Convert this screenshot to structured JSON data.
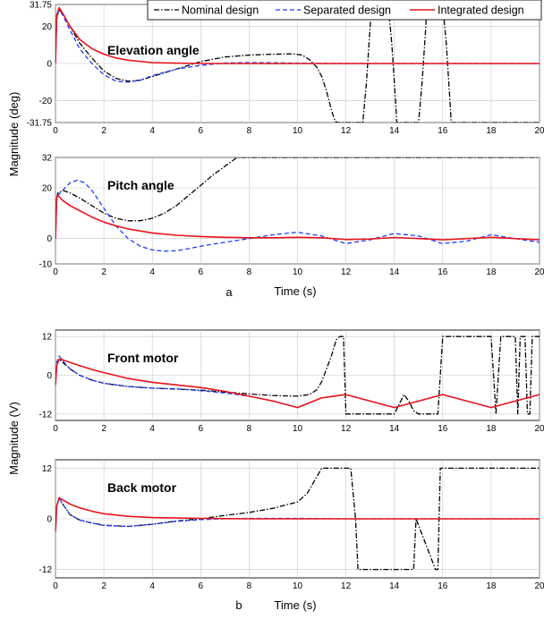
{
  "figure": {
    "ylabel_top": "Magnitude (deg)",
    "ylabel_bottom": "Magnitude (V)",
    "label_a": "a",
    "label_b": "b",
    "xlabel": "Time (s)"
  },
  "legend": {
    "placement": "top-right",
    "entries": [
      {
        "label": "Nominal design",
        "color": "#000000",
        "dash": "dashdot"
      },
      {
        "label": "Separated design",
        "color": "#1f3fff",
        "dash": "dashed"
      },
      {
        "label": "Integrated design",
        "color": "#e8141c",
        "dash": "solid"
      }
    ]
  },
  "colors": {
    "nominal": "#000000",
    "separated": "#1f3fff",
    "integrated": "#e8141c"
  },
  "chart_data": [
    {
      "type": "line",
      "title": "Elevation angle",
      "xlabel": "",
      "ylabel": "Magnitude (deg)",
      "xlim": [
        0,
        20
      ],
      "ylim": [
        -31.75,
        31.75
      ],
      "xticks": [
        "0",
        "2",
        "4",
        "6",
        "8",
        "10",
        "12",
        "14",
        "16",
        "18",
        "20"
      ],
      "yticks": [
        31.75,
        20,
        0,
        -20,
        -31.75
      ],
      "yticklabels": [
        "31.75",
        "20",
        "0",
        "-20",
        "-31.75"
      ],
      "grid": true,
      "series": [
        {
          "name": "Nominal design",
          "x": [
            0,
            0.05,
            0.15,
            0.3,
            0.6,
            1,
            1.5,
            2,
            2.5,
            3,
            3.5,
            4,
            5,
            6,
            7,
            8,
            9,
            9.8,
            10.2,
            10.5,
            10.8,
            11,
            11.2,
            11.4,
            11.55,
            11.65,
            12.7,
            12.85,
            13,
            13.05,
            13.75,
            13.9,
            14.05,
            14.1,
            15,
            15.15,
            15.3,
            15.35,
            16,
            16.15,
            16.3,
            16.35,
            20
          ],
          "y": [
            0,
            24,
            29,
            27,
            20,
            11,
            3,
            -4,
            -8,
            -9.5,
            -9,
            -7,
            -3,
            1,
            3.5,
            4.5,
            5,
            5.2,
            4.5,
            2,
            -2,
            -7,
            -15,
            -25,
            -31,
            -31.75,
            -31.75,
            -10,
            20,
            31.75,
            31.75,
            10,
            -20,
            -31.75,
            -31.75,
            -10,
            20,
            31.75,
            31.75,
            10,
            -20,
            -31.75,
            -31.75
          ]
        },
        {
          "name": "Separated design",
          "x": [
            0,
            0.05,
            0.15,
            0.3,
            0.6,
            1,
            1.5,
            2,
            2.5,
            3,
            3.5,
            4,
            5,
            6,
            7,
            8,
            9,
            10,
            12,
            14,
            16,
            18,
            20
          ],
          "y": [
            0,
            24,
            29,
            26,
            18,
            8,
            0,
            -6,
            -9.5,
            -10,
            -9,
            -6.5,
            -3,
            -1,
            0.3,
            0.5,
            0.4,
            0.2,
            0,
            0,
            0,
            0,
            0
          ]
        },
        {
          "name": "Integrated design",
          "x": [
            0,
            0.05,
            0.15,
            0.3,
            0.6,
            1,
            1.5,
            2,
            2.5,
            3,
            4,
            5,
            6,
            8,
            10,
            12,
            14,
            16,
            18,
            20
          ],
          "y": [
            0,
            26,
            30,
            27,
            20,
            13,
            8,
            5,
            3,
            1.8,
            0.5,
            0.2,
            0,
            0,
            0,
            0,
            0,
            0,
            0,
            0
          ]
        }
      ]
    },
    {
      "type": "line",
      "title": "Pitch angle",
      "xlabel": "Time (s)",
      "ylabel": "Magnitude (deg)",
      "xlim": [
        0,
        20
      ],
      "ylim": [
        -10,
        32
      ],
      "xticks": [
        "0",
        "2",
        "4",
        "6",
        "8",
        "10",
        "12",
        "14",
        "16",
        "18",
        "20"
      ],
      "yticks": [
        32,
        20,
        0,
        -10
      ],
      "yticklabels": [
        "32",
        "20",
        "0",
        "-10"
      ],
      "grid": true,
      "series": [
        {
          "name": "Nominal design",
          "x": [
            0,
            0.05,
            0.1,
            0.3,
            0.6,
            1,
            1.5,
            2,
            2.5,
            3,
            3.5,
            4,
            4.5,
            5,
            5.5,
            6,
            6.5,
            7,
            7.5,
            20
          ],
          "y": [
            0,
            16,
            18,
            19,
            18,
            16,
            13,
            10,
            8,
            7,
            7,
            8,
            10,
            13,
            17,
            21,
            25,
            28.5,
            32,
            32
          ]
        },
        {
          "name": "Separated design",
          "x": [
            0,
            0.05,
            0.1,
            0.3,
            0.6,
            0.9,
            1.2,
            1.5,
            2,
            2.5,
            3,
            3.5,
            4,
            4.5,
            5,
            5.5,
            6,
            7,
            8,
            9,
            10,
            11,
            12,
            13,
            14,
            15,
            16,
            17,
            18,
            19,
            20
          ],
          "y": [
            0,
            15,
            17,
            19,
            22,
            23,
            22,
            19,
            12,
            5,
            0,
            -3,
            -4.5,
            -5,
            -4.8,
            -4,
            -3,
            -1.5,
            0,
            1.5,
            2.5,
            1,
            -2,
            -0.5,
            2,
            1,
            -2,
            -1,
            1.5,
            0,
            -1.5
          ]
        },
        {
          "name": "Integrated design",
          "x": [
            0,
            0.05,
            0.1,
            0.3,
            0.6,
            1,
            1.5,
            2,
            2.5,
            3,
            4,
            5,
            6,
            7,
            8,
            9,
            10,
            11,
            12,
            13,
            14,
            15,
            16,
            17,
            18,
            19,
            20
          ],
          "y": [
            0,
            16,
            17,
            15,
            13,
            11,
            8.5,
            6.5,
            5,
            3.8,
            2.2,
            1.3,
            0.8,
            0.5,
            0.3,
            0.3,
            0.5,
            0.3,
            -0.4,
            -0.2,
            0.4,
            0,
            -0.5,
            0,
            0.5,
            0,
            -0.5
          ]
        }
      ]
    },
    {
      "type": "line",
      "title": "Front motor",
      "xlabel": "",
      "ylabel": "Magnitude (V)",
      "xlim": [
        0,
        20
      ],
      "ylim": [
        -14,
        14
      ],
      "xticks": [
        "0",
        "2",
        "4",
        "6",
        "8",
        "10",
        "12",
        "14",
        "16",
        "18",
        "20"
      ],
      "yticks": [
        12,
        0,
        -12
      ],
      "yticklabels": [
        "12",
        "0",
        "-12"
      ],
      "grid": true,
      "series": [
        {
          "name": "Nominal design",
          "x": [
            0,
            0.05,
            0.15,
            0.3,
            0.6,
            1,
            1.5,
            2,
            3,
            4,
            5,
            6,
            7,
            8,
            9,
            10,
            10.5,
            10.8,
            11,
            11.2,
            11.4,
            11.6,
            11.75,
            11.9,
            12,
            14,
            14.2,
            14.4,
            14.6,
            14.8,
            15,
            15.5,
            15.8,
            16,
            18,
            18.2,
            18.4,
            19,
            19.1,
            19.2,
            19.4,
            19.5,
            19.6,
            19.7,
            20
          ],
          "y": [
            -3,
            3,
            5,
            4,
            2,
            0,
            -1.5,
            -2.5,
            -3.5,
            -4,
            -4.3,
            -4.6,
            -5.2,
            -5.8,
            -6.3,
            -6.5,
            -6,
            -4.5,
            -2,
            2,
            6,
            11,
            12,
            12,
            -12,
            -12,
            -9,
            -6,
            -8,
            -11,
            -12,
            -12,
            -12,
            12,
            12,
            -12,
            12,
            12,
            -12,
            12,
            12,
            -12,
            -12,
            12,
            12
          ]
        },
        {
          "name": "Separated design",
          "x": [
            0,
            0.05,
            0.15,
            0.3,
            0.6,
            1,
            1.5,
            2,
            3,
            4,
            5,
            6,
            7,
            8,
            9,
            10,
            11,
            12,
            13,
            14,
            15,
            16,
            17,
            18,
            19,
            20
          ],
          "y": [
            -3,
            4,
            6,
            4.5,
            2,
            0,
            -1.5,
            -2.5,
            -3.5,
            -4,
            -4.2,
            -4.8,
            -5.5,
            -6.5,
            -8,
            -10,
            -7,
            -6,
            -8,
            -10,
            -8,
            -6,
            -8,
            -10,
            -8,
            -6
          ]
        },
        {
          "name": "Integrated design",
          "x": [
            0,
            0.05,
            0.15,
            0.3,
            0.6,
            1,
            1.5,
            2,
            3,
            4,
            5,
            6,
            7,
            8,
            9,
            10,
            11,
            12,
            13,
            14,
            15,
            16,
            17,
            18,
            19,
            20
          ],
          "y": [
            -3,
            3,
            5,
            4.8,
            4,
            3,
            1.8,
            0.8,
            -1,
            -2.2,
            -3,
            -3.8,
            -5,
            -6.5,
            -8,
            -10,
            -7,
            -6,
            -8,
            -10,
            -8,
            -6,
            -8,
            -10,
            -8,
            -6
          ]
        }
      ]
    },
    {
      "type": "line",
      "title": "Back motor",
      "xlabel": "Time (s)",
      "ylabel": "Magnitude (V)",
      "xlim": [
        0,
        20
      ],
      "ylim": [
        -14,
        14
      ],
      "xticks": [
        "0",
        "2",
        "4",
        "6",
        "8",
        "10",
        "12",
        "14",
        "16",
        "18",
        "20"
      ],
      "yticks": [
        12,
        0,
        -12
      ],
      "yticklabels": [
        "12",
        "0",
        "-12"
      ],
      "grid": true,
      "series": [
        {
          "name": "Nominal design",
          "x": [
            0,
            0.05,
            0.15,
            0.3,
            0.6,
            1,
            1.5,
            2,
            3,
            4,
            5,
            6,
            7,
            8,
            9,
            10,
            10.4,
            10.7,
            11,
            11.05,
            12.2,
            12.4,
            12.5,
            13,
            14.8,
            14.9,
            15.7,
            15.8,
            15.9,
            16,
            20
          ],
          "y": [
            -3,
            3,
            5,
            3.5,
            1,
            -0.3,
            -1,
            -1.5,
            -1.8,
            -1.3,
            -0.5,
            0,
            0.8,
            1.5,
            2.5,
            4,
            6,
            9,
            12,
            12,
            12,
            0,
            -12,
            -12,
            -12,
            0,
            -12,
            -12,
            12,
            12,
            12
          ]
        },
        {
          "name": "Separated design",
          "x": [
            0,
            0.05,
            0.15,
            0.3,
            0.6,
            1,
            1.5,
            2,
            3,
            4,
            5,
            6,
            7,
            8,
            10,
            12,
            14,
            16,
            18,
            20
          ],
          "y": [
            -3,
            3,
            5,
            3.5,
            1,
            -0.3,
            -1,
            -1.6,
            -1.8,
            -1.3,
            -0.6,
            -0.2,
            0,
            0.1,
            0.1,
            0,
            0,
            0,
            0,
            0
          ]
        },
        {
          "name": "Integrated design",
          "x": [
            0,
            0.05,
            0.15,
            0.3,
            0.6,
            1,
            1.5,
            2,
            3,
            4,
            5,
            6,
            8,
            10,
            12,
            14,
            16,
            18,
            20
          ],
          "y": [
            -3,
            3,
            5,
            4.5,
            3.5,
            2.6,
            1.8,
            1.2,
            0.6,
            0.3,
            0.2,
            0.1,
            0,
            0,
            0,
            0,
            0,
            0,
            0
          ]
        }
      ]
    }
  ]
}
